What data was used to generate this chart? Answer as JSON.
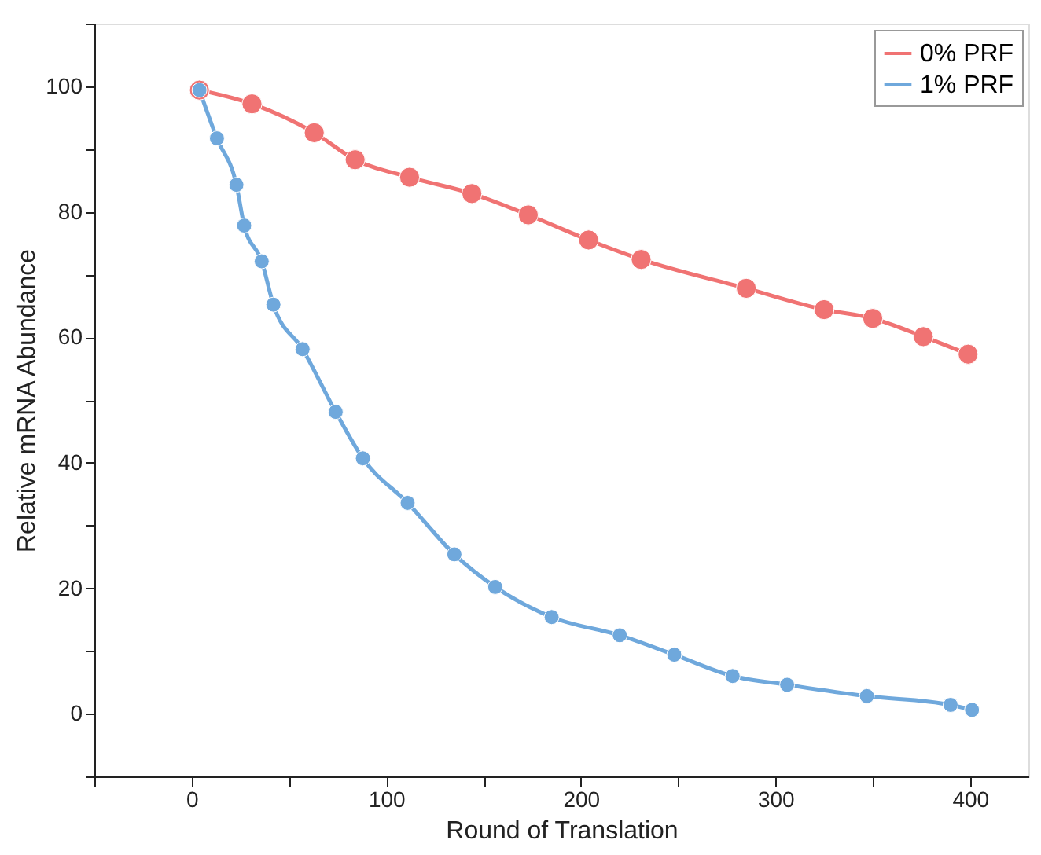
{
  "chart_data": {
    "type": "line",
    "xlabel": "Round of Translation",
    "ylabel": "Relative mRNA Abundance",
    "xlim": [
      -50,
      430
    ],
    "ylim": [
      -10,
      110
    ],
    "xticks": [
      {
        "value": -50,
        "label": null
      },
      0,
      {
        "value": 50,
        "label": null
      },
      100,
      {
        "value": 150,
        "label": null
      },
      200,
      {
        "value": 250,
        "label": null
      },
      300,
      {
        "value": 350,
        "label": null
      },
      400
    ],
    "yticks": [
      {
        "value": -10,
        "label": null
      },
      0,
      {
        "value": 10,
        "label": null
      },
      20,
      {
        "value": 30,
        "label": null
      },
      40,
      {
        "value": 50,
        "label": null
      },
      60,
      {
        "value": 70,
        "label": null
      },
      80,
      {
        "value": 90,
        "label": null
      },
      100,
      {
        "value": 110,
        "label": null
      }
    ],
    "grid": false,
    "legend": "top right",
    "marker": "circle",
    "line_style": "solid",
    "series": [
      {
        "name": "0% PRF",
        "color": "#f07373",
        "x": [
          4,
          31,
          63,
          84,
          112,
          144,
          173,
          204,
          231,
          285,
          325,
          350,
          376,
          399
        ],
        "values": [
          99.4,
          97.2,
          92.6,
          88.3,
          85.5,
          82.9,
          79.5,
          75.5,
          72.4,
          67.8,
          64.4,
          63.0,
          60.1,
          57.3
        ]
      },
      {
        "name": "1% PRF",
        "color": "#6fa8dc",
        "x": [
          4,
          13,
          23,
          27,
          36,
          42,
          57,
          74,
          88,
          111,
          135,
          156,
          185,
          220,
          248,
          278,
          306,
          347,
          390,
          401
        ],
        "values": [
          99.4,
          91.7,
          84.3,
          77.8,
          72.1,
          65.2,
          58.1,
          48.1,
          40.7,
          33.6,
          25.4,
          20.2,
          15.4,
          12.5,
          9.4,
          6.0,
          4.6,
          2.8,
          1.4,
          0.6
        ]
      }
    ]
  }
}
